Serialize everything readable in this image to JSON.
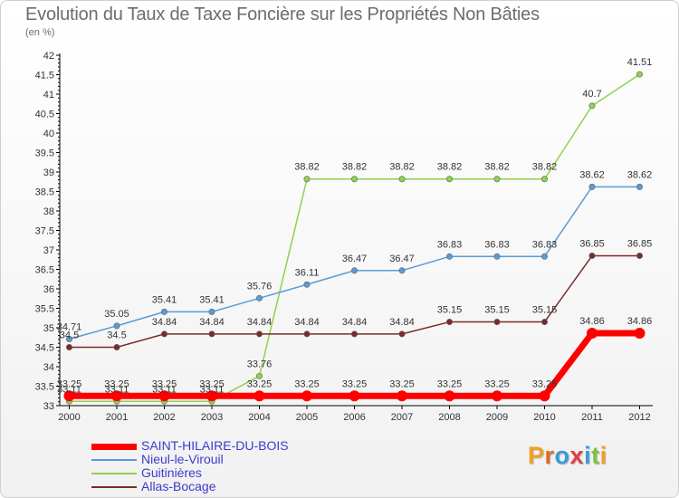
{
  "title": "Evolution du Taux de Taxe Foncière sur les Propriétés Non Bâties",
  "subtitle": "(en %)",
  "logo": {
    "letters": [
      "P",
      "r",
      "o",
      "x",
      "i",
      "t",
      "i"
    ],
    "colors": [
      "#f0a020",
      "#e06a20",
      "#3a9ad8",
      "#e04040",
      "#3a9ad8",
      "#80c040",
      "#f0a020"
    ]
  },
  "chart_data": {
    "type": "line",
    "x": [
      "2000",
      "2001",
      "2002",
      "2003",
      "2004",
      "2005",
      "2006",
      "2007",
      "2008",
      "2009",
      "2010",
      "2011",
      "2012"
    ],
    "ylim": [
      33,
      42
    ],
    "yticks": [
      "33",
      "33.5",
      "34",
      "34.5",
      "35",
      "35.5",
      "36",
      "36.5",
      "37",
      "37.5",
      "38",
      "38.5",
      "39",
      "39.5",
      "40",
      "40.5",
      "41",
      "41.5",
      "42"
    ],
    "grid": "y-dashes-only",
    "legend": "bottom-left",
    "series": [
      {
        "name": "SAINT-HILAIRE-DU-BOIS",
        "color": "#ff0000",
        "values": [
          33.25,
          33.25,
          33.25,
          33.25,
          33.25,
          33.25,
          33.25,
          33.25,
          33.25,
          33.25,
          33.25,
          34.86,
          34.86
        ],
        "labels": [
          "33.25",
          "33.25",
          "33.25",
          "33.25",
          "33.25",
          "33.25",
          "33.25",
          "33.25",
          "33.25",
          "33.25",
          "33.25",
          "34.86",
          "34.86"
        ]
      },
      {
        "name": "Nieul-le-Virouil",
        "color": "#5a9bd5",
        "values": [
          34.71,
          35.05,
          35.41,
          35.41,
          35.76,
          36.11,
          36.47,
          36.47,
          36.83,
          36.83,
          36.83,
          38.62,
          38.62
        ],
        "labels": [
          "34.71",
          "35.05",
          "35.41",
          "35.41",
          "35.76",
          "36.11",
          "36.47",
          "36.47",
          "36.83",
          "36.83",
          "36.83",
          "38.62",
          "38.62"
        ]
      },
      {
        "name": "Guitinières",
        "color": "#8fd14f",
        "values": [
          33.11,
          33.11,
          33.11,
          33.11,
          33.76,
          38.82,
          38.82,
          38.82,
          38.82,
          38.82,
          38.82,
          40.7,
          41.51
        ],
        "labels": [
          "33.11",
          "33.11",
          "33.11",
          "33.11",
          "33.76",
          "38.82",
          "38.82",
          "38.82",
          "38.82",
          "38.82",
          "38.82",
          "40.7",
          "41.51"
        ]
      },
      {
        "name": "Allas-Bocage",
        "color": "#7a2a2a",
        "values": [
          34.5,
          34.5,
          34.84,
          34.84,
          34.84,
          34.84,
          34.84,
          34.84,
          35.15,
          35.15,
          35.15,
          36.85,
          36.85
        ],
        "labels": [
          "34.5",
          "34.5",
          "34.84",
          "34.84",
          "34.84",
          "34.84",
          "34.84",
          "34.84",
          "35.15",
          "35.15",
          "35.15",
          "36.85",
          "36.85"
        ]
      }
    ]
  }
}
